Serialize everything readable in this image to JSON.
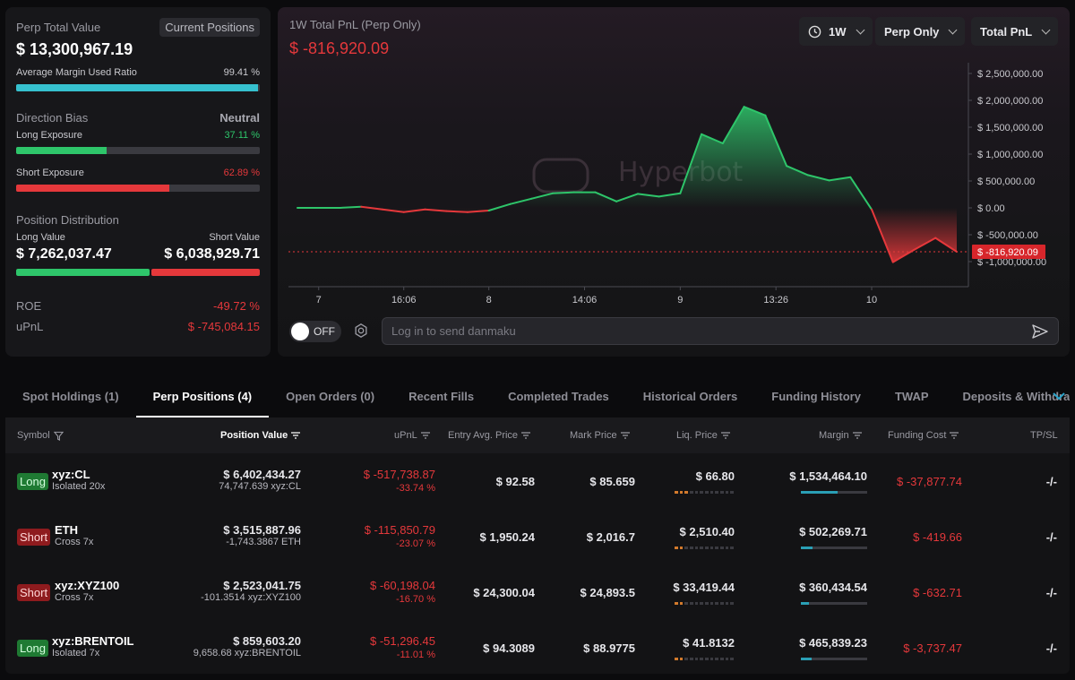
{
  "summary": {
    "title": "Perp Total Value",
    "badge": "Current Positions",
    "total_value": "$ 13,300,967.19",
    "margin_label": "Average Margin Used Ratio",
    "margin_pct": "99.41 %",
    "margin_fill": 0.9941,
    "direction_label": "Direction Bias",
    "direction_value": "Neutral",
    "long_label": "Long Exposure",
    "long_pct": "37.11 %",
    "long_fill": 0.3711,
    "short_label": "Short Exposure",
    "short_pct": "62.89 %",
    "short_fill": 0.6289,
    "distribution_label": "Position Distribution",
    "long_value_label": "Long Value",
    "short_value_label": "Short Value",
    "long_value": "$ 7,262,037.47",
    "short_value": "$ 6,038,929.71",
    "long_share": 0.546,
    "roe_label": "ROE",
    "roe_value": "-49.72 %",
    "upnl_label": "uPnL",
    "upnl_value": "$ -745,084.15"
  },
  "pnl_chart": {
    "title": "1W Total PnL (Perp Only)",
    "value": "$ -816,920.09",
    "current_label": "$ -816,920.09",
    "current": -816920.09,
    "filters": {
      "period": "1W",
      "scope": "Perp Only",
      "metric": "Total PnL"
    },
    "watermark": "Hyperbot",
    "colors": {
      "up": "#2ec56a",
      "down": "#e5383b"
    }
  },
  "chart_data": {
    "type": "line",
    "title": "1W Total PnL (Perp Only)",
    "xlabel": "",
    "ylabel": "",
    "ylim": [
      -1000000,
      2500000
    ],
    "x_ticks": [
      "7",
      "16:06",
      "8",
      "14:06",
      "9",
      "13:26",
      "10"
    ],
    "y_ticks": [
      "$ 2,500,000.00",
      "$ 2,000,000.00",
      "$ 1,500,000.00",
      "$ 1,000,000.00",
      "$ 500,000.00",
      "$ 0.00",
      "$ -500,000.00",
      "$ -1,000,000.00"
    ],
    "y_tick_values": [
      2500000,
      2000000,
      1500000,
      1000000,
      500000,
      0,
      -500000,
      -1000000
    ],
    "x_tick_index": [
      1,
      5,
      9,
      13.5,
      18,
      22.5,
      27
    ],
    "values": [
      0,
      0,
      0,
      20000,
      -30000,
      -80000,
      -30000,
      -60000,
      -80000,
      -50000,
      70000,
      170000,
      270000,
      290000,
      290000,
      120000,
      260000,
      210000,
      270000,
      1370000,
      1200000,
      1880000,
      1720000,
      780000,
      610000,
      510000,
      570000,
      -30000,
      -1010000,
      -780000,
      -560000,
      -816920.09
    ],
    "legend": "none",
    "grid": false
  },
  "danmaku": {
    "toggle_label": "OFF",
    "placeholder": "Log in to send danmaku"
  },
  "tabs": [
    "Spot Holdings (1)",
    "Perp Positions (4)",
    "Open Orders (0)",
    "Recent Fills",
    "Completed Trades",
    "Historical Orders",
    "Funding History",
    "TWAP",
    "Deposits & Withdraw"
  ],
  "table": {
    "headers": {
      "symbol": "Symbol",
      "position_value": "Position Value",
      "upnl": "uPnL",
      "entry": "Entry Avg. Price",
      "mark": "Mark Price",
      "liq": "Liq. Price",
      "margin": "Margin",
      "funding": "Funding Cost",
      "tpsl": "TP/SL"
    },
    "rows": [
      {
        "side": "Long",
        "symbol": "xyz:CL",
        "mode": "Isolated 20x",
        "value": "$ 6,402,434.27",
        "size": "74,747.639 xyz:CL",
        "upnl": "$ -517,738.87",
        "upnl_pct": "-33.74 %",
        "entry": "$ 92.58",
        "mark": "$ 85.659",
        "liq": "$ 66.80",
        "liq_risk": 3,
        "margin": "$ 1,534,464.10",
        "margin_fill": 0.55,
        "funding": "$ -37,877.74",
        "tpsl": "-/-"
      },
      {
        "side": "Short",
        "symbol": "ETH",
        "mode": "Cross 7x",
        "value": "$ 3,515,887.96",
        "size": "-1,743.3867 ETH",
        "upnl": "$ -115,850.79",
        "upnl_pct": "-23.07 %",
        "entry": "$ 1,950.24",
        "mark": "$ 2,016.7",
        "liq": "$ 2,510.40",
        "liq_risk": 2,
        "margin": "$ 502,269.71",
        "margin_fill": 0.18,
        "funding": "$ -419.66",
        "tpsl": "-/-"
      },
      {
        "side": "Short",
        "symbol": "xyz:XYZ100",
        "mode": "Cross 7x",
        "value": "$ 2,523,041.75",
        "size": "-101.3514 xyz:XYZ100",
        "upnl": "$ -60,198.04",
        "upnl_pct": "-16.70 %",
        "entry": "$ 24,300.04",
        "mark": "$ 24,893.5",
        "liq": "$ 33,419.44",
        "liq_risk": 2,
        "margin": "$ 360,434.54",
        "margin_fill": 0.12,
        "funding": "$ -632.71",
        "tpsl": "-/-"
      },
      {
        "side": "Long",
        "symbol": "xyz:BRENTOIL",
        "mode": "Isolated 7x",
        "value": "$ 859,603.20",
        "size": "9,658.68 xyz:BRENTOIL",
        "upnl": "$ -51,296.45",
        "upnl_pct": "-11.01 %",
        "entry": "$ 94.3089",
        "mark": "$ 88.9775",
        "liq": "$ 41.8132",
        "liq_risk": 2,
        "margin": "$ 465,839.23",
        "margin_fill": 0.16,
        "funding": "$ -3,737.47",
        "tpsl": "-/-"
      }
    ]
  }
}
